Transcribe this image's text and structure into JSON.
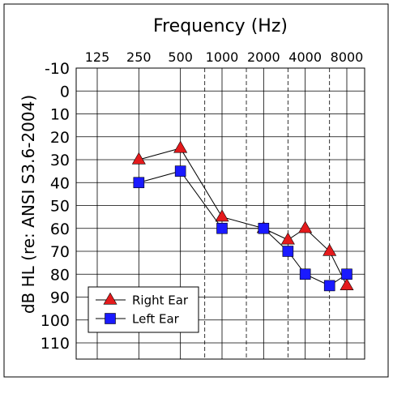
{
  "chart_data": {
    "type": "line",
    "title": "Frequency (Hz)",
    "ylabel": "dB HL (re: ANSI S3.6-2004)",
    "x_tick_labels": [
      "125",
      "250",
      "500",
      "1000",
      "2000",
      "4000",
      "8000"
    ],
    "y_tick_labels": [
      "-10",
      "0",
      "10",
      "20",
      "30",
      "40",
      "50",
      "60",
      "70",
      "80",
      "90",
      "100",
      "110"
    ],
    "ylim": [
      -10,
      110
    ],
    "y_reversed": true,
    "x_scale": "log2 (octave)",
    "grid": true,
    "dashed_interoctave_lines_hz": [
      750,
      1500,
      3000,
      6000
    ],
    "legend_position": "bottom-left",
    "series": [
      {
        "name": "Right Ear",
        "marker": "triangle",
        "color": "#e41a1c",
        "points": [
          {
            "x": 250,
            "y": 30
          },
          {
            "x": 500,
            "y": 25
          },
          {
            "x": 1000,
            "y": 55
          },
          {
            "x": 2000,
            "y": 60
          },
          {
            "x": 3000,
            "y": 65
          },
          {
            "x": 4000,
            "y": 60
          },
          {
            "x": 6000,
            "y": 70
          },
          {
            "x": 8000,
            "y": 85
          }
        ]
      },
      {
        "name": "Left Ear",
        "marker": "square",
        "color": "#1a1aff",
        "points": [
          {
            "x": 250,
            "y": 40
          },
          {
            "x": 500,
            "y": 35
          },
          {
            "x": 1000,
            "y": 60
          },
          {
            "x": 2000,
            "y": 60
          },
          {
            "x": 3000,
            "y": 70
          },
          {
            "x": 4000,
            "y": 80
          },
          {
            "x": 6000,
            "y": 85
          },
          {
            "x": 8000,
            "y": 80
          }
        ]
      }
    ]
  }
}
